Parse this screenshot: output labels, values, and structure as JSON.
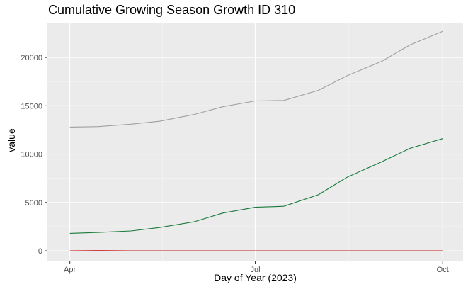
{
  "chart_data": {
    "type": "line",
    "title": "Cumulative Growing Season Growth ID 310",
    "xlabel": "Day of Year (2023)",
    "ylabel": "value",
    "x_ticks": [
      "Apr",
      "Jul",
      "Oct"
    ],
    "x_tick_dates": [
      "2023-04-01",
      "2023-07-01",
      "2023-10-01"
    ],
    "xlim": [
      "2023-03-21",
      "2023-10-11"
    ],
    "ylim": [
      -1100,
      23600
    ],
    "y_ticks": [
      0,
      5000,
      10000,
      15000,
      20000
    ],
    "grid": true,
    "legend": "none",
    "series": [
      {
        "color": "#a0a0a0",
        "x": [
          "2023-04-01",
          "2023-04-15",
          "2023-05-01",
          "2023-05-15",
          "2023-06-01",
          "2023-06-15",
          "2023-07-01",
          "2023-07-15",
          "2023-08-01",
          "2023-08-15",
          "2023-09-01",
          "2023-09-15",
          "2023-10-01"
        ],
        "values": [
          12800,
          12850,
          13100,
          13400,
          14100,
          14900,
          15500,
          15550,
          16600,
          18100,
          19600,
          21300,
          22700
        ]
      },
      {
        "color": "#1a7a3c",
        "x": [
          "2023-04-01",
          "2023-04-15",
          "2023-05-01",
          "2023-05-15",
          "2023-06-01",
          "2023-06-15",
          "2023-07-01",
          "2023-07-15",
          "2023-08-01",
          "2023-08-15",
          "2023-09-01",
          "2023-09-15",
          "2023-10-01"
        ],
        "values": [
          1800,
          1900,
          2050,
          2400,
          3000,
          3900,
          4500,
          4600,
          5800,
          7600,
          9200,
          10600,
          11600
        ]
      },
      {
        "color": "#cc1f1f",
        "x": [
          "2023-04-01",
          "2023-04-15",
          "2023-05-01",
          "2023-06-01",
          "2023-07-01",
          "2023-08-01",
          "2023-09-01",
          "2023-10-01"
        ],
        "values": [
          0,
          20,
          0,
          0,
          0,
          0,
          0,
          0
        ]
      }
    ]
  }
}
